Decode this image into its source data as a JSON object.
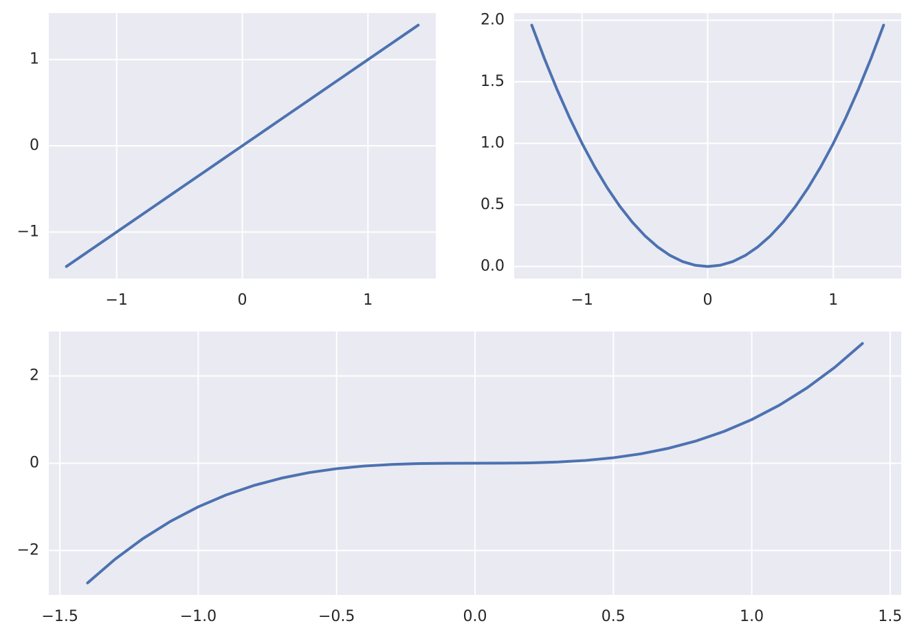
{
  "chart_data": [
    {
      "type": "line",
      "color": "#4c72b0",
      "grid": true,
      "x": [
        -1.4,
        -1.3,
        -1.2,
        -1.1,
        -1.0,
        -0.9,
        -0.8,
        -0.7,
        -0.6,
        -0.5,
        -0.4,
        -0.3,
        -0.2,
        -0.1,
        0,
        0.1,
        0.2,
        0.3,
        0.4,
        0.5,
        0.6,
        0.7,
        0.8,
        0.9,
        1.0,
        1.1,
        1.2,
        1.3,
        1.4
      ],
      "values": [
        -1.4,
        -1.3,
        -1.2,
        -1.1,
        -1.0,
        -0.9,
        -0.8,
        -0.7,
        -0.6,
        -0.5,
        -0.4,
        -0.3,
        -0.2,
        -0.1,
        0,
        0.1,
        0.2,
        0.3,
        0.4,
        0.5,
        0.6,
        0.7,
        0.8,
        0.9,
        1.0,
        1.1,
        1.2,
        1.3,
        1.4
      ],
      "xlim": [
        -1.54,
        1.54
      ],
      "ylim": [
        -1.54,
        1.54
      ],
      "xticks": [
        {
          "value": -1,
          "label": "−1"
        },
        0,
        1
      ],
      "yticks": [
        {
          "value": -1,
          "label": "−1"
        },
        0,
        1
      ]
    },
    {
      "type": "line",
      "color": "#4c72b0",
      "grid": true,
      "x": [
        -1.4,
        -1.3,
        -1.2,
        -1.1,
        -1.0,
        -0.9,
        -0.8,
        -0.7,
        -0.6,
        -0.5,
        -0.4,
        -0.3,
        -0.2,
        -0.1,
        0,
        0.1,
        0.2,
        0.3,
        0.4,
        0.5,
        0.6,
        0.7,
        0.8,
        0.9,
        1.0,
        1.1,
        1.2,
        1.3,
        1.4
      ],
      "values": [
        1.96,
        1.69,
        1.44,
        1.21,
        1.0,
        0.81,
        0.64,
        0.49,
        0.36,
        0.25,
        0.16,
        0.09,
        0.04,
        0.01,
        0,
        0.01,
        0.04,
        0.09,
        0.16,
        0.25,
        0.36,
        0.49,
        0.64,
        0.81,
        1.0,
        1.21,
        1.44,
        1.69,
        1.96
      ],
      "xlim": [
        -1.54,
        1.54
      ],
      "ylim": [
        -0.098,
        2.058
      ],
      "xticks": [
        {
          "value": -1,
          "label": "−1"
        },
        0,
        1
      ],
      "yticks": [
        {
          "value": 0,
          "label": "0.0"
        },
        0.5,
        {
          "value": 1,
          "label": "1.0"
        },
        1.5,
        {
          "value": 2,
          "label": "2.0"
        }
      ]
    },
    {
      "type": "line",
      "color": "#4c72b0",
      "grid": true,
      "x": [
        -1.4,
        -1.3,
        -1.2,
        -1.1,
        -1.0,
        -0.9,
        -0.8,
        -0.7,
        -0.6,
        -0.5,
        -0.4,
        -0.3,
        -0.2,
        -0.1,
        0,
        0.1,
        0.2,
        0.3,
        0.4,
        0.5,
        0.6,
        0.7,
        0.8,
        0.9,
        1.0,
        1.1,
        1.2,
        1.3,
        1.4
      ],
      "values": [
        -2.744,
        -2.197,
        -1.728,
        -1.331,
        -1.0,
        -0.729,
        -0.512,
        -0.343,
        -0.216,
        -0.125,
        -0.064,
        -0.027,
        -0.008,
        -0.001,
        0,
        0.001,
        0.008,
        0.027,
        0.064,
        0.125,
        0.216,
        0.343,
        0.512,
        0.729,
        1.0,
        1.331,
        1.728,
        2.197,
        2.744
      ],
      "xlim": [
        -1.54,
        1.54
      ],
      "ylim": [
        -3.0184,
        3.0184
      ],
      "xticks": [
        {
          "value": -1.5,
          "label": "−1.5"
        },
        {
          "value": -1,
          "label": "−1.0"
        },
        {
          "value": -0.5,
          "label": "−0.5"
        },
        {
          "value": 0,
          "label": "0.0"
        },
        0.5,
        {
          "value": 1,
          "label": "1.0"
        },
        1.5
      ],
      "yticks": [
        {
          "value": -2,
          "label": "−2"
        },
        0,
        2
      ]
    }
  ]
}
